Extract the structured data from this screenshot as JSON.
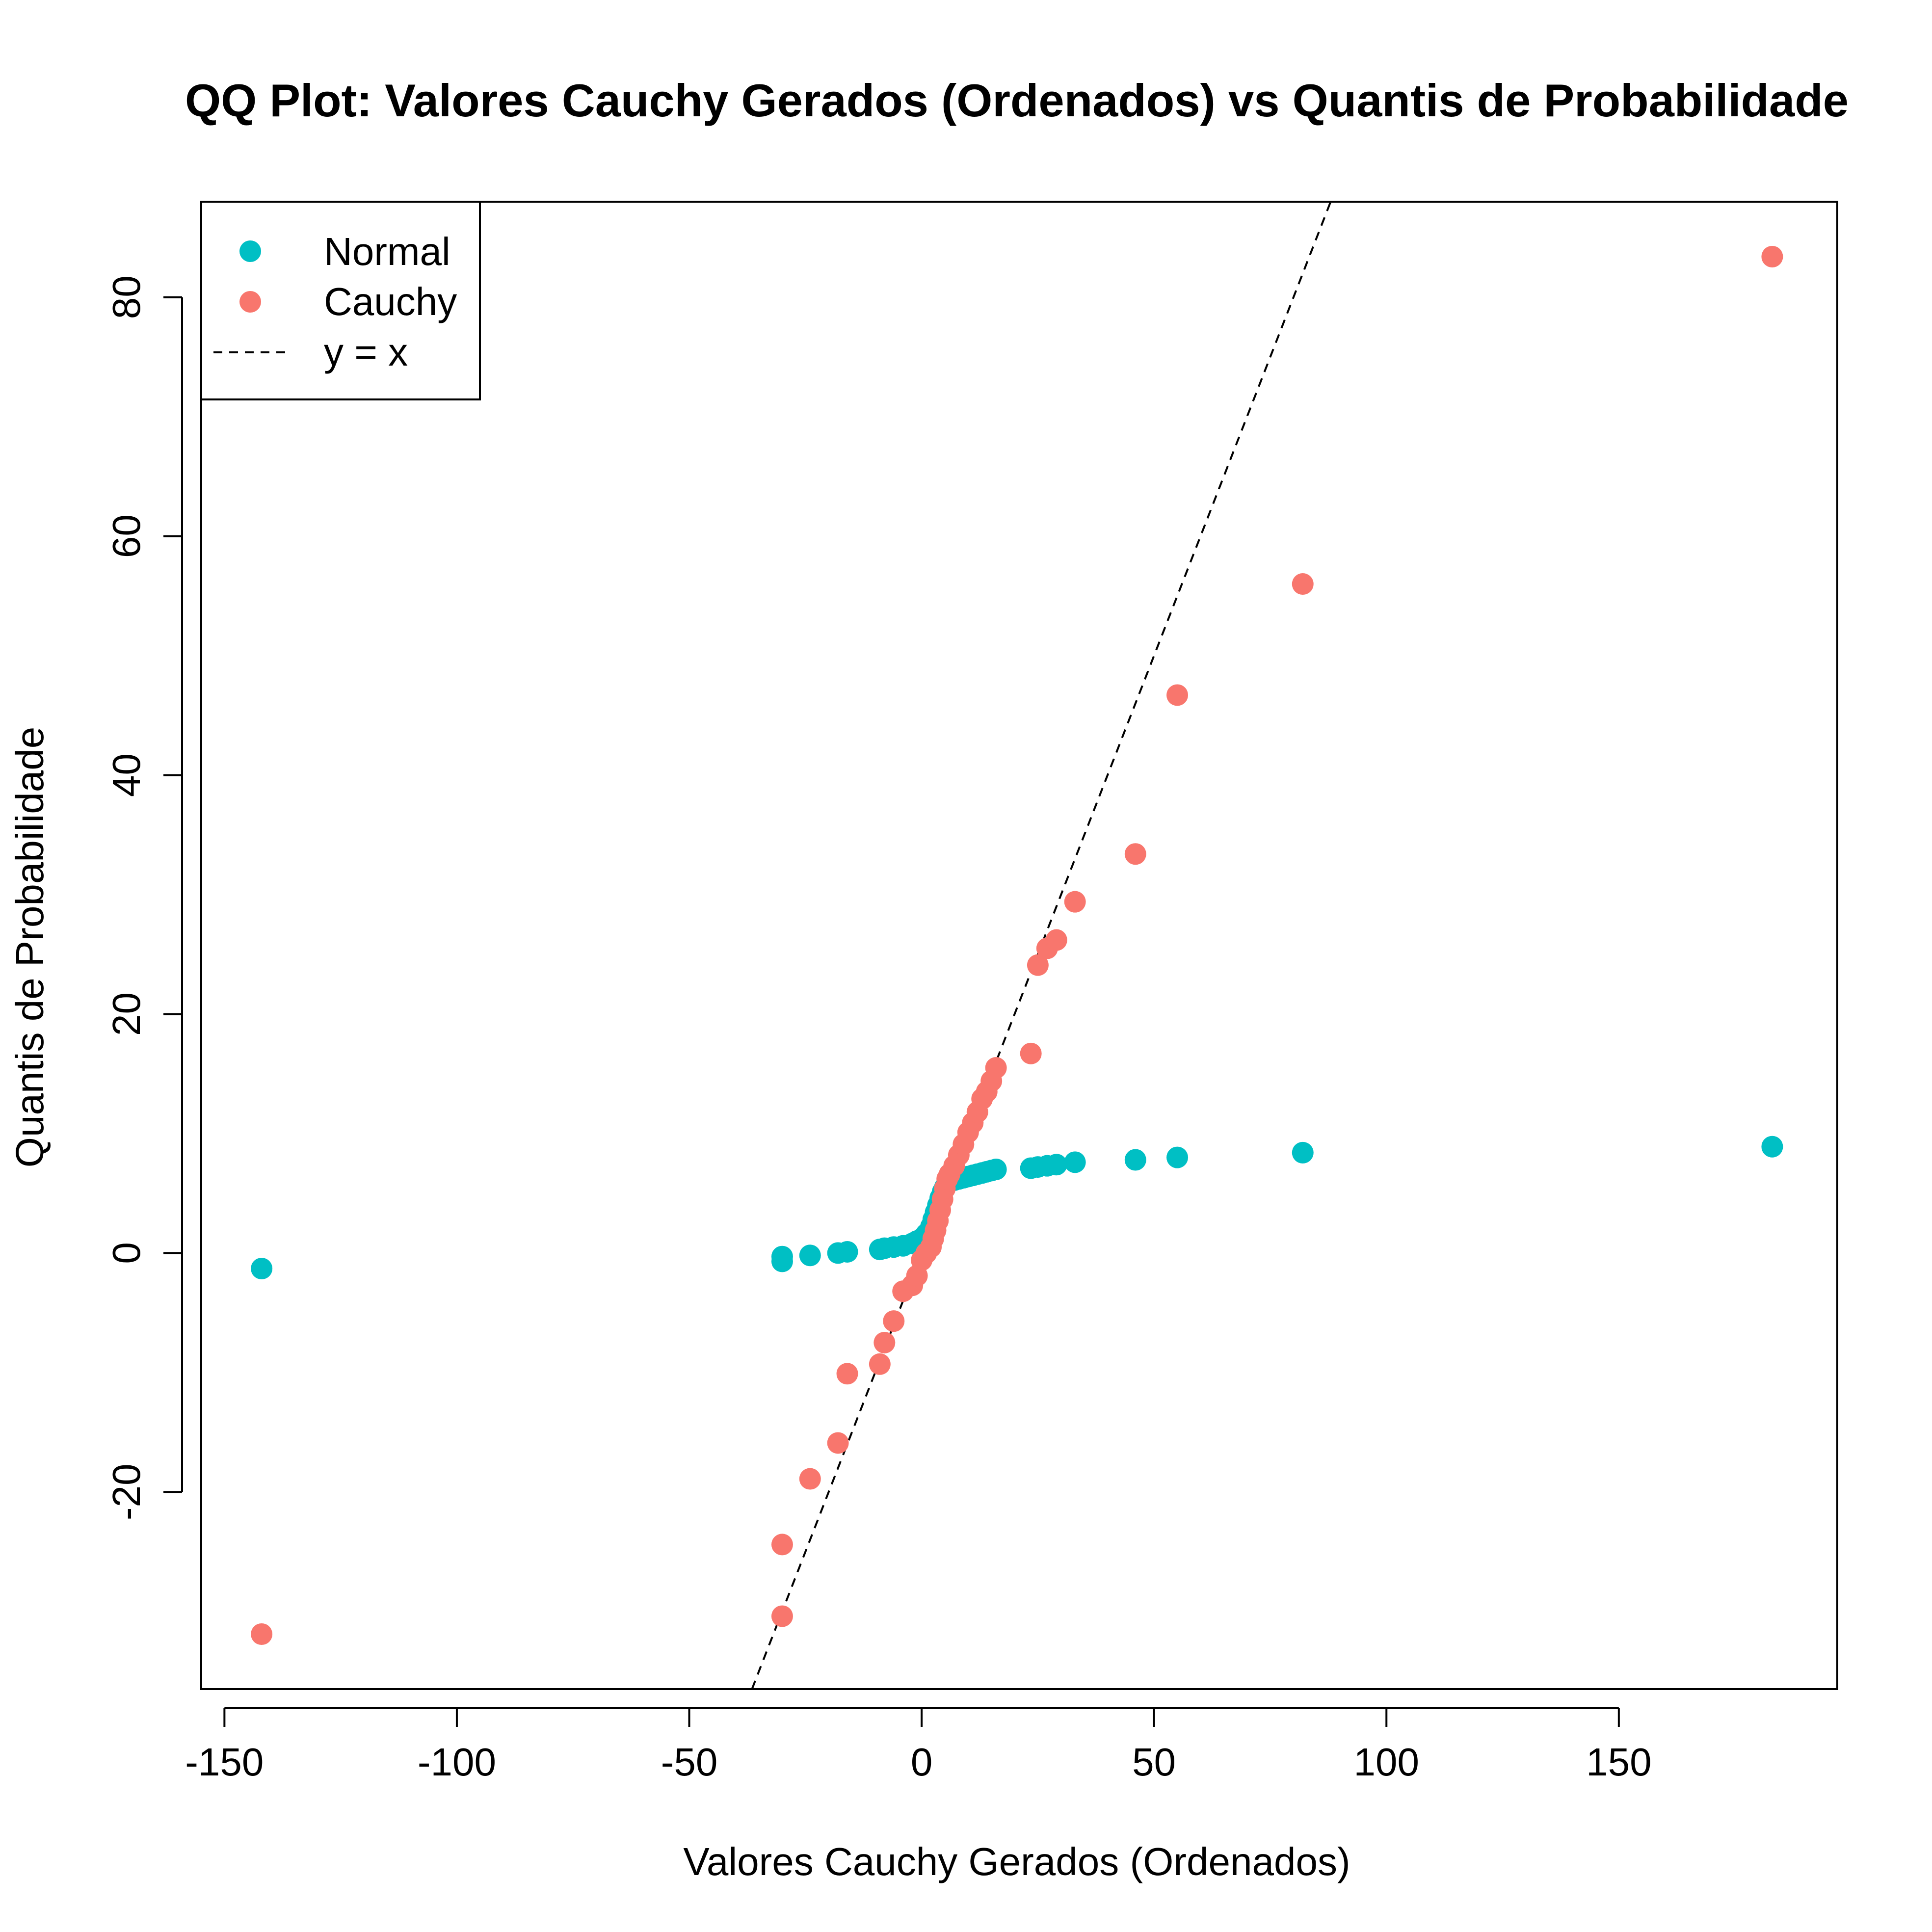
{
  "chart_data": {
    "type": "scatter",
    "title": "QQ Plot: Valores Cauchy Gerados (Ordenados) vs Quantis de Probabilidade",
    "xlabel": "Valores Cauchy Gerados (Ordenados)",
    "ylabel": "Quantis de Probabilidade",
    "xlim": [
      -155,
      197
    ],
    "ylim": [
      -36.5,
      88
    ],
    "x_ticks": [
      -150,
      -100,
      -50,
      0,
      50,
      100,
      150
    ],
    "x_tick_labels": [
      "-150",
      "-100",
      "-50",
      "0",
      "50",
      "100",
      "150"
    ],
    "y_ticks": [
      -20,
      0,
      20,
      40,
      60,
      80
    ],
    "y_tick_labels": [
      "-20",
      "0",
      "20",
      "40",
      "60",
      "80"
    ],
    "grid": false,
    "legend_position": "top-left",
    "reference_line": {
      "name": "y = x",
      "slope": 1,
      "intercept": 0,
      "style": "dashed",
      "color": "#000000"
    },
    "series": [
      {
        "name": "Normal",
        "color": "#00BFC4",
        "x": [
          -142,
          -30,
          -30,
          -24,
          -18,
          -16,
          -9,
          -8,
          -6,
          -4,
          -2,
          -1,
          0,
          1,
          2,
          2.5,
          3,
          3.5,
          4,
          4.5,
          5,
          5.5,
          6,
          7,
          8,
          9,
          10,
          11,
          12,
          13,
          14,
          15,
          16,
          23.5,
          25,
          27,
          29,
          33,
          46,
          55,
          82,
          183
        ],
        "y": [
          -1.3,
          -0.7,
          -0.3,
          -0.2,
          0.0,
          0.1,
          0.3,
          0.4,
          0.5,
          0.6,
          0.8,
          1.0,
          1.2,
          1.6,
          2.2,
          2.8,
          3.4,
          4.0,
          4.6,
          5.1,
          5.5,
          5.8,
          6.0,
          6.1,
          6.2,
          6.3,
          6.4,
          6.5,
          6.6,
          6.7,
          6.8,
          6.9,
          7.0,
          7.1,
          7.2,
          7.3,
          7.4,
          7.6,
          7.8,
          8.0,
          8.4,
          8.9
        ]
      },
      {
        "name": "Cauchy",
        "color": "#F8766D",
        "x": [
          -142,
          -30,
          -30,
          -24,
          -18,
          -16,
          -9,
          -8,
          -6,
          -4,
          -2,
          -1,
          0,
          1,
          2,
          2.5,
          3,
          3.5,
          4,
          4.5,
          5,
          5.5,
          6,
          7,
          8,
          9,
          10,
          11,
          12,
          13,
          14,
          15,
          16,
          23.5,
          25,
          27,
          29,
          33,
          46,
          55,
          82,
          183
        ],
        "y": [
          -31.9,
          -30.4,
          -24.4,
          -18.9,
          -15.9,
          -10.1,
          -9.3,
          -7.5,
          -5.7,
          -3.2,
          -2.7,
          -1.9,
          -0.6,
          0.0,
          0.5,
          1.2,
          1.9,
          2.7,
          3.6,
          4.5,
          5.4,
          6.2,
          6.6,
          7.3,
          8.2,
          9.1,
          10.1,
          10.9,
          11.8,
          12.9,
          13.5,
          14.4,
          15.5,
          16.7,
          24.1,
          25.5,
          26.2,
          29.4,
          33.4,
          46.7,
          56.0,
          83.4
        ]
      }
    ]
  },
  "legend": {
    "items": [
      {
        "label": "Normal",
        "kind": "point",
        "color": "#00BFC4"
      },
      {
        "label": "Cauchy",
        "kind": "point",
        "color": "#F8766D"
      },
      {
        "label": "y = x",
        "kind": "dashed-line",
        "color": "#000000"
      }
    ]
  }
}
